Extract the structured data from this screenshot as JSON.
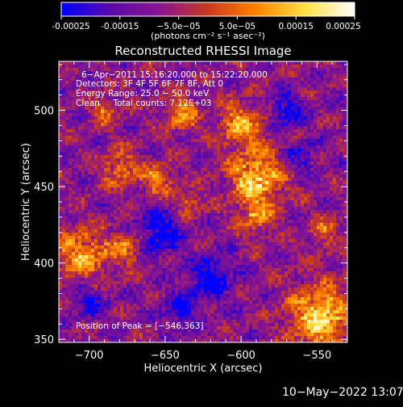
{
  "colorbar": {
    "tick_labels": [
      "-0.00025",
      "-0.00015",
      "−5.0e−05",
      "5.0e−05",
      "0.00015",
      "0.00025"
    ],
    "tick_values": [
      -0.00025,
      -0.00015,
      -5e-05,
      5e-05,
      0.00015,
      0.00025
    ],
    "range": [
      -0.00025,
      0.00025
    ],
    "units_label": "(photons cm⁻² s⁻¹ asec⁻²)",
    "colors": [
      "#0000ff",
      "#5a0aa8",
      "#8a1590",
      "#c83a1e",
      "#ff8000",
      "#ffe040",
      "#ffffff"
    ]
  },
  "chart_data": {
    "type": "heatmap",
    "title": "Reconstructed RHESSI Image",
    "xlabel": "Heliocentric X (arcsec)",
    "ylabel": "Heliocentric Y (arcsec)",
    "xlim": [
      -720,
      -530
    ],
    "ylim": [
      348,
      532
    ],
    "x_ticks": [
      -700,
      -650,
      -600,
      -550
    ],
    "y_ticks": [
      350,
      400,
      450,
      500
    ],
    "x_tick_labels": [
      "−700",
      "−650",
      "−600",
      "−550"
    ],
    "y_tick_labels": [
      "350",
      "400",
      "450",
      "500"
    ],
    "grid": false,
    "peak": [
      -546,
      363
    ],
    "bright_regions": [
      {
        "x": -590,
        "y": 455,
        "amplitude": 0.00025,
        "sigma": 12
      },
      {
        "x": -600,
        "y": 490,
        "amplitude": 0.0002,
        "sigma": 10
      },
      {
        "x": -640,
        "y": 498,
        "amplitude": 0.00018,
        "sigma": 8
      },
      {
        "x": -655,
        "y": 455,
        "amplitude": 0.00017,
        "sigma": 7
      },
      {
        "x": -680,
        "y": 462,
        "amplitude": 0.00016,
        "sigma": 8
      },
      {
        "x": -705,
        "y": 405,
        "amplitude": 0.0002,
        "sigma": 12
      },
      {
        "x": -675,
        "y": 410,
        "amplitude": 0.00015,
        "sigma": 8
      },
      {
        "x": -548,
        "y": 365,
        "amplitude": 0.00026,
        "sigma": 14
      },
      {
        "x": -590,
        "y": 430,
        "amplitude": 0.00015,
        "sigma": 8
      },
      {
        "x": -635,
        "y": 440,
        "amplitude": 0.00014,
        "sigma": 6
      },
      {
        "x": -690,
        "y": 500,
        "amplitude": 0.00014,
        "sigma": 6
      },
      {
        "x": -545,
        "y": 420,
        "amplitude": 0.00013,
        "sigma": 7
      }
    ],
    "dark_regions": [
      {
        "x": -655,
        "y": 420,
        "amplitude": -0.0002,
        "sigma": 10
      },
      {
        "x": -620,
        "y": 390,
        "amplitude": -0.00018,
        "sigma": 10
      },
      {
        "x": -570,
        "y": 500,
        "amplitude": -0.00016,
        "sigma": 8
      },
      {
        "x": -700,
        "y": 375,
        "amplitude": -0.00014,
        "sigma": 8
      },
      {
        "x": -640,
        "y": 370,
        "amplitude": -0.00015,
        "sigma": 8
      },
      {
        "x": -560,
        "y": 470,
        "amplitude": -0.00012,
        "sigma": 7
      }
    ]
  },
  "annotations": {
    "lines": [
      "6−Apr−2011 15:16:20.000 to 15:22:20.000",
      "Detectors: 3F 4F 5F 6F 7F 8F, Att 0",
      "Energy Range: 25.0 − 50.0 keV",
      "Clean     Total counts: 7.12E+03"
    ],
    "peak_label": "Position of Peak = [−546,363]"
  },
  "timestamp": "10−May−2022 13:07"
}
